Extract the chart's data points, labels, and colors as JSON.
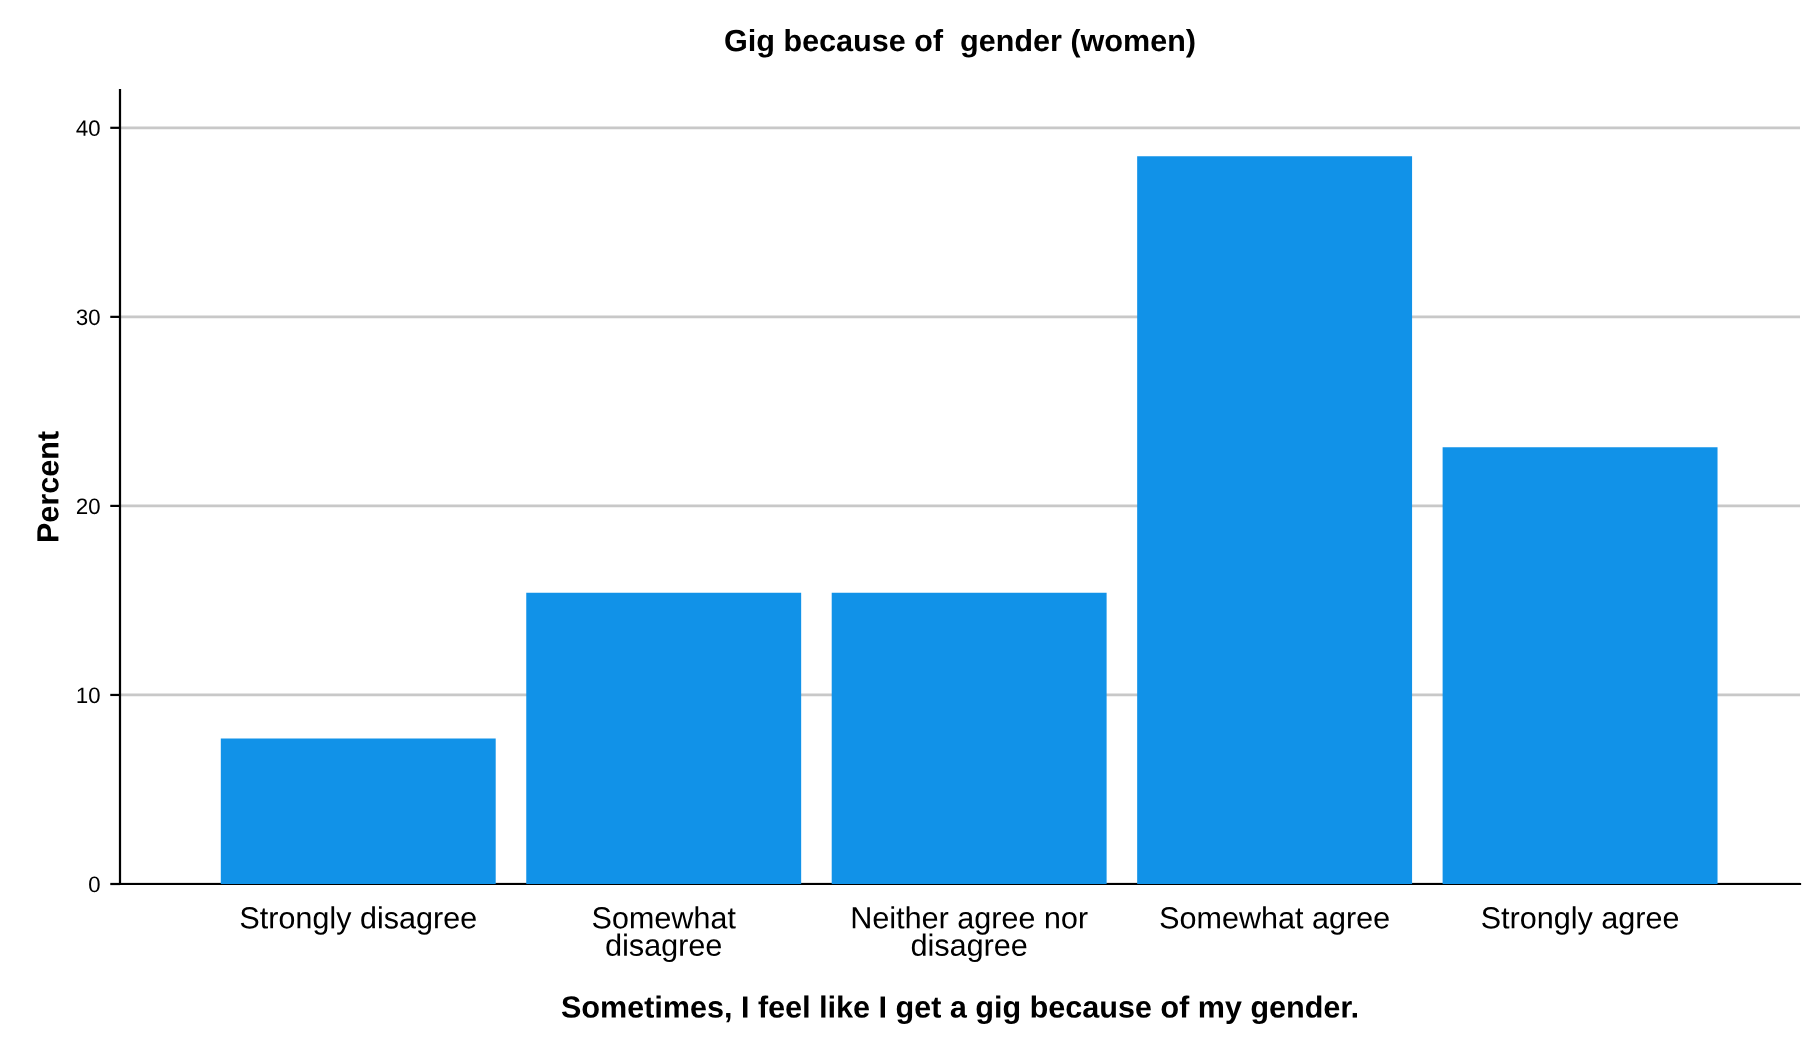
{
  "chart_data": {
    "type": "bar",
    "title": "Gig because of  gender (women)",
    "xlabel": "Sometimes, I feel like I get a gig because of my gender.",
    "ylabel": "Percent",
    "categories": [
      "Strongly disagree",
      "Somewhat\ndisagree",
      "Neither agree nor\ndisagree",
      "Somewhat agree",
      "Strongly agree"
    ],
    "values": [
      7.7,
      15.4,
      15.4,
      38.5,
      23.1
    ],
    "color": "#1192e8",
    "ylim": [
      0,
      42
    ],
    "yticks": [
      0,
      10,
      20,
      30,
      40
    ],
    "grid": "y"
  }
}
